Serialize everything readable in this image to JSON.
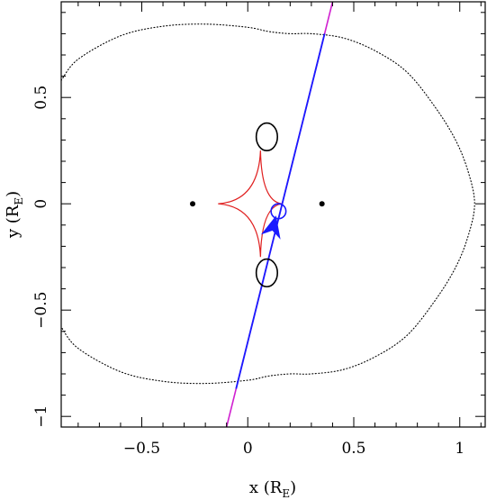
{
  "chart_data": {
    "type": "line",
    "xlabel": {
      "main": "x (R",
      "sub": "E",
      "close": ")"
    },
    "ylabel": {
      "main": "y (R",
      "sub": "E",
      "close": ")"
    },
    "xlim": [
      -0.88,
      1.12
    ],
    "ylim": [
      -1.05,
      0.95
    ],
    "x_ticks": [
      -0.5,
      0,
      0.5,
      1
    ],
    "x_tick_labels": [
      "−0.5",
      "0",
      "0.5",
      "1"
    ],
    "y_ticks": [
      -1,
      -0.5,
      0,
      0.5
    ],
    "y_tick_labels": [
      "−1",
      "−0.5",
      "0",
      "0.5"
    ],
    "x_minor_step": 0.1,
    "y_minor_step": 0.1,
    "grid": false,
    "lenses": [
      {
        "x": -0.26,
        "y": 0
      },
      {
        "x": 0.35,
        "y": 0
      }
    ],
    "critical_curve": {
      "style": "dotted",
      "color": "#000000",
      "points": [
        [
          -0.88,
          0.58
        ],
        [
          -0.8,
          0.68
        ],
        [
          -0.6,
          0.79
        ],
        [
          -0.4,
          0.835
        ],
        [
          -0.2,
          0.845
        ],
        [
          0.0,
          0.83
        ],
        [
          0.1,
          0.81
        ],
        [
          0.2,
          0.8
        ],
        [
          0.3,
          0.8
        ],
        [
          0.45,
          0.78
        ],
        [
          0.6,
          0.72
        ],
        [
          0.75,
          0.62
        ],
        [
          0.88,
          0.46
        ],
        [
          0.98,
          0.3
        ],
        [
          1.04,
          0.15
        ],
        [
          1.07,
          0.0
        ],
        [
          1.04,
          -0.15
        ],
        [
          0.98,
          -0.3
        ],
        [
          0.88,
          -0.46
        ],
        [
          0.75,
          -0.62
        ],
        [
          0.6,
          -0.72
        ],
        [
          0.45,
          -0.78
        ],
        [
          0.3,
          -0.8
        ],
        [
          0.2,
          -0.8
        ],
        [
          0.1,
          -0.81
        ],
        [
          0.0,
          -0.83
        ],
        [
          -0.2,
          -0.845
        ],
        [
          -0.4,
          -0.835
        ],
        [
          -0.6,
          -0.79
        ],
        [
          -0.8,
          -0.68
        ],
        [
          -0.88,
          -0.58
        ]
      ]
    },
    "caustic": {
      "color": "#e02020",
      "center": [
        0.06,
        0
      ],
      "cusps": [
        [
          0.06,
          0.25
        ],
        [
          0.16,
          0
        ],
        [
          0.06,
          -0.25
        ],
        [
          -0.14,
          0
        ]
      ]
    },
    "images": [
      {
        "x": 0.09,
        "y": 0.315,
        "rx": 0.05,
        "ry": 0.065,
        "color": "#000000"
      },
      {
        "x": 0.09,
        "y": -0.325,
        "rx": 0.05,
        "ry": 0.065,
        "color": "#000000"
      },
      {
        "x": 0.145,
        "y": -0.035,
        "rx": 0.035,
        "ry": 0.035,
        "color": "#1a1aff"
      }
    ],
    "trajectory": {
      "p1": [
        -0.1,
        -1.05
      ],
      "p2": [
        0.4,
        0.95
      ],
      "outer_color": "#d020d0",
      "inner_color": "#1a1aff",
      "inner_y_range": [
        -0.87,
        0.8
      ]
    },
    "source_arrow": {
      "x": 0.12,
      "y": -0.11,
      "color": "#1a1aff"
    }
  }
}
